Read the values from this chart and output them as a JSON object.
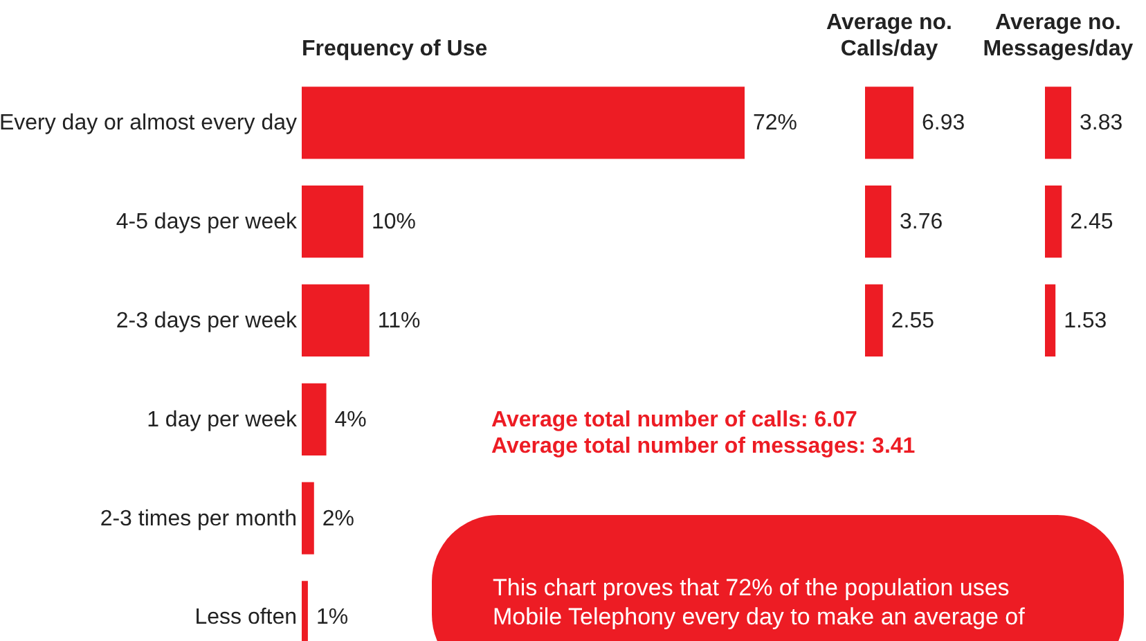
{
  "chart_data": [
    {
      "type": "bar",
      "orientation": "horizontal",
      "title": "Frequency of Use",
      "categories": [
        "Every day or almost every day",
        "4-5 days per week",
        "2-3 days per week",
        "1 day per week",
        "2-3 times per month",
        "Less often"
      ],
      "values": [
        72,
        10,
        11,
        4,
        2,
        1
      ],
      "value_labels": [
        "72%",
        "10%",
        "11%",
        "4%",
        "2%",
        "1%"
      ],
      "color": "#ed1c24",
      "tick_labels": "y",
      "annotations": [
        "Average total number of calls: 6.07",
        "Average total number of messages: 3.41",
        "This chart proves that 72% of the population uses Mobile Telephony every day to make an average of"
      ]
    },
    {
      "type": "bar",
      "orientation": "horizontal",
      "title": "Average no.\nCalls/day",
      "categories": [
        null,
        null,
        null
      ],
      "values": [
        6.93,
        3.76,
        2.55
      ],
      "data_labels": true,
      "color": "#ed1c24",
      "tick_labels": false
    },
    {
      "type": "bar",
      "orientation": "horizontal",
      "title": "Average no.\nMessages/day",
      "categories": [
        null,
        null,
        null
      ],
      "values": [
        3.83,
        2.45,
        1.53
      ],
      "data_labels": true,
      "color": "#ed1c24",
      "tick_labels": false
    }
  ]
}
